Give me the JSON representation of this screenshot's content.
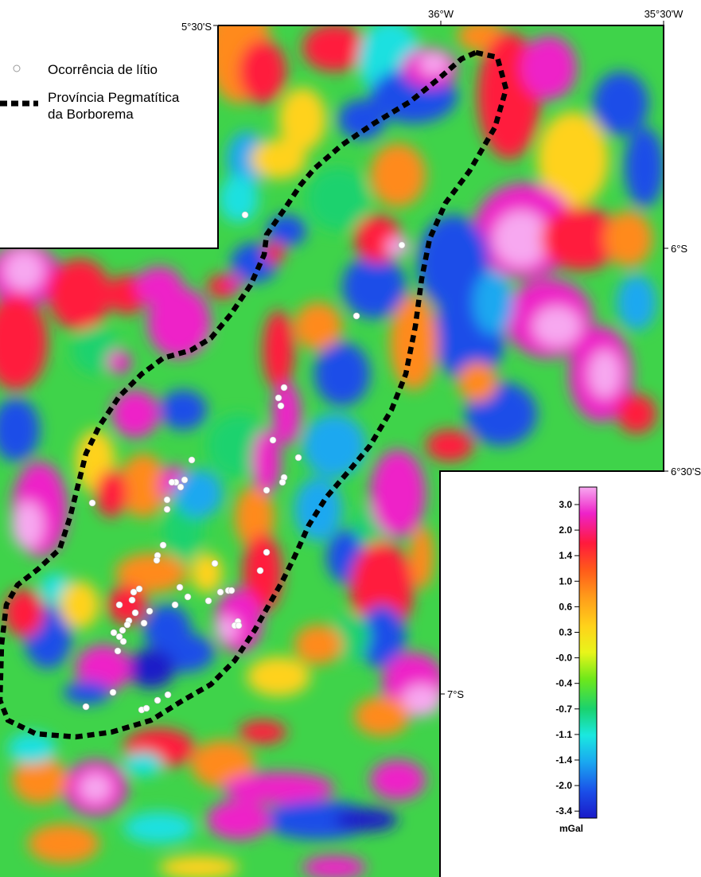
{
  "legend": {
    "occurrence_label": "Ocorrência de lítio",
    "province_label_line1": "Província Pegmatítica",
    "province_label_line2": "da Borborema",
    "occurrence_symbol_color": "#ffffff",
    "province_line_color": "#000000"
  },
  "coordinates": {
    "lat_top": "5°30'S",
    "lon_36": "36°W",
    "lon_3530": "35°30'W",
    "lat_6": "6°S",
    "lat_630": "6°30'S",
    "lat_7": "7°S"
  },
  "colorbar": {
    "ticks": [
      "3.0",
      "2.0",
      "1.4",
      "1.0",
      "0.6",
      "0.3",
      "-0.0",
      "-0.4",
      "-0.7",
      "-1.1",
      "-1.4",
      "-2.0",
      "-3.4"
    ],
    "unit": "mGal",
    "colors": [
      "#f7a8f0",
      "#ee22c8",
      "#ff1a3c",
      "#ff5a1a",
      "#ff9a1a",
      "#ffd21a",
      "#e8f51a",
      "#6ee81a",
      "#1ad26e",
      "#1ae8e0",
      "#1aa8f0",
      "#1a4ee8",
      "#1a1ac8"
    ]
  },
  "map": {
    "type": "gravity_anomaly_map",
    "occurrence_count": 62
  }
}
